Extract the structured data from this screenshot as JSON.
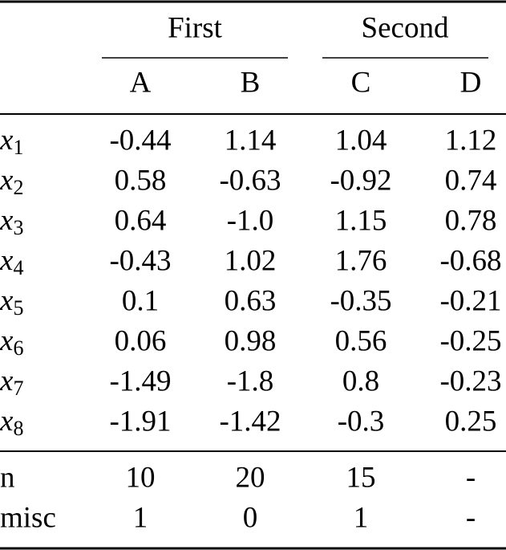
{
  "table": {
    "groups": [
      {
        "label": "First",
        "columns": [
          "A",
          "B"
        ]
      },
      {
        "label": "Second",
        "columns": [
          "C",
          "D"
        ]
      }
    ],
    "rows": [
      {
        "symbol": "x",
        "index": "1",
        "cells": [
          "-0.44",
          "1.14",
          "1.04",
          "1.12"
        ]
      },
      {
        "symbol": "x",
        "index": "2",
        "cells": [
          "0.58",
          "-0.63",
          "-0.92",
          "0.74"
        ]
      },
      {
        "symbol": "x",
        "index": "3",
        "cells": [
          "0.64",
          "-1.0",
          "1.15",
          "0.78"
        ]
      },
      {
        "symbol": "x",
        "index": "4",
        "cells": [
          "-0.43",
          "1.02",
          "1.76",
          "-0.68"
        ]
      },
      {
        "symbol": "x",
        "index": "5",
        "cells": [
          "0.1",
          "0.63",
          "-0.35",
          "-0.21"
        ]
      },
      {
        "symbol": "x",
        "index": "6",
        "cells": [
          "0.06",
          "0.98",
          "0.56",
          "-0.25"
        ]
      },
      {
        "symbol": "x",
        "index": "7",
        "cells": [
          "-1.49",
          "-1.8",
          "0.8",
          "-0.23"
        ]
      },
      {
        "symbol": "x",
        "index": "8",
        "cells": [
          "-1.91",
          "-1.42",
          "-0.3",
          "0.25"
        ]
      }
    ],
    "footer_rows": [
      {
        "label": "n",
        "cells": [
          "10",
          "20",
          "15",
          "-"
        ]
      },
      {
        "label": "misc",
        "cells": [
          "1",
          "0",
          "1",
          "-"
        ]
      }
    ]
  }
}
